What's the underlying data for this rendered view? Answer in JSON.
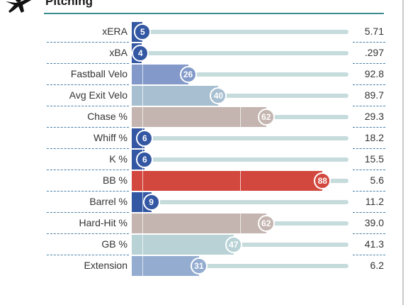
{
  "header": {
    "title": "Pitching",
    "icon": "pitcher-icon"
  },
  "colors": {
    "rule": "#3b8c8c",
    "track": "#c6dcdc"
  },
  "rows": [
    {
      "label": "xERA",
      "percentile": 5,
      "value": "5.71",
      "color": "#3357a3"
    },
    {
      "label": "xBA",
      "percentile": 4,
      "value": ".297",
      "color": "#3357a3"
    },
    {
      "label": "Fastball Velo",
      "percentile": 26,
      "value": "92.8",
      "color": "#8299c9"
    },
    {
      "label": "Avg Exit Velo",
      "percentile": 40,
      "value": "89.7",
      "color": "#a7bfd0"
    },
    {
      "label": "Chase %",
      "percentile": 62,
      "value": "29.3",
      "color": "#c4b5b0"
    },
    {
      "label": "Whiff %",
      "percentile": 6,
      "value": "18.2",
      "color": "#3357a3"
    },
    {
      "label": "K %",
      "percentile": 6,
      "value": "15.5",
      "color": "#3357a3"
    },
    {
      "label": "BB %",
      "percentile": 88,
      "value": "5.6",
      "color": "#d2483e"
    },
    {
      "label": "Barrel %",
      "percentile": 9,
      "value": "11.2",
      "color": "#3357a3"
    },
    {
      "label": "Hard-Hit %",
      "percentile": 62,
      "value": "39.0",
      "color": "#c4b5b0"
    },
    {
      "label": "GB %",
      "percentile": 47,
      "value": "41.3",
      "color": "#b8d2d6"
    },
    {
      "label": "Extension",
      "percentile": 31,
      "value": "6.2",
      "color": "#94acd0"
    }
  ]
}
